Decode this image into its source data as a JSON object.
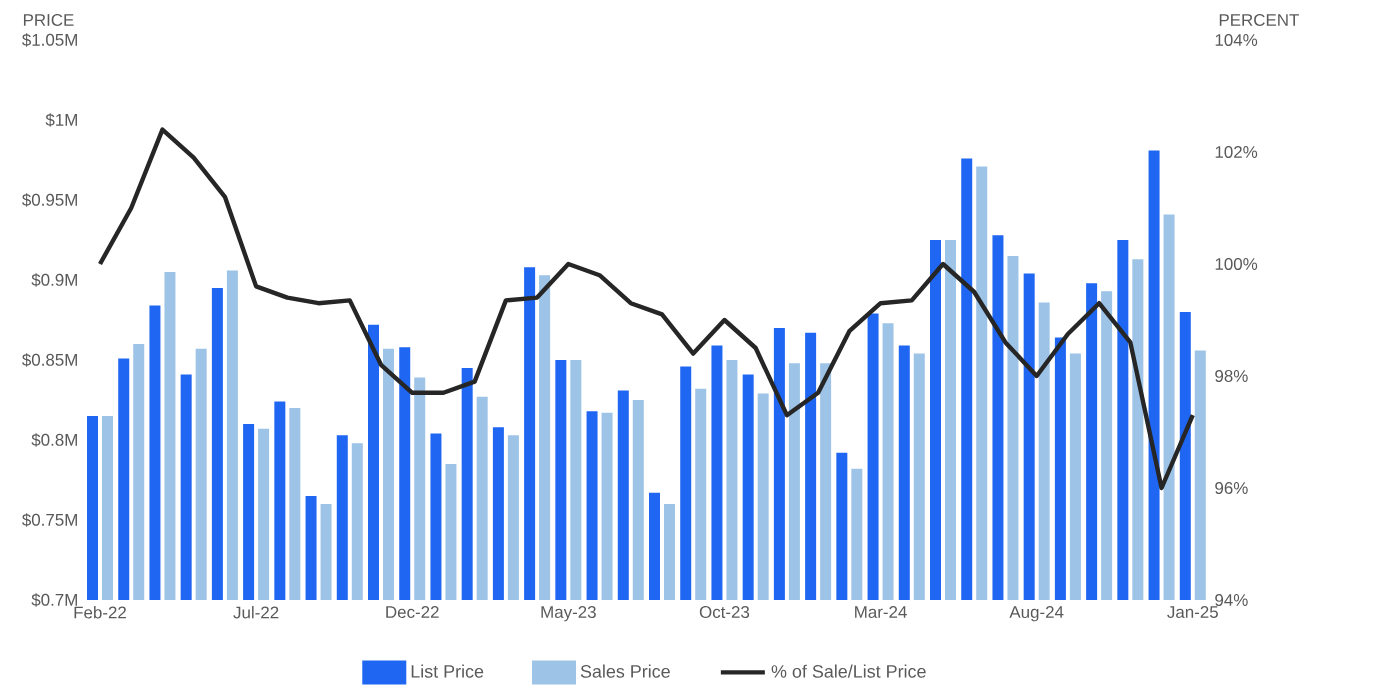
{
  "chart_data": {
    "type": "bar",
    "categories": [
      "Feb-22",
      null,
      null,
      null,
      null,
      "Jul-22",
      null,
      null,
      null,
      null,
      "Dec-22",
      null,
      null,
      null,
      null,
      "May-23",
      null,
      null,
      null,
      null,
      "Oct-23",
      null,
      null,
      null,
      null,
      "Mar-24",
      null,
      null,
      null,
      null,
      "Aug-24",
      null,
      null,
      null,
      null,
      "Jan-25"
    ],
    "series": [
      {
        "name": "List Price",
        "color": "#1f66f2",
        "values": [
          0.815,
          0.851,
          0.884,
          0.841,
          0.895,
          0.81,
          0.824,
          0.765,
          0.803,
          0.872,
          0.858,
          0.804,
          0.845,
          0.808,
          0.908,
          0.85,
          0.818,
          0.831,
          0.767,
          0.846,
          0.859,
          0.841,
          0.87,
          0.867,
          0.792,
          0.879,
          0.859,
          0.925,
          0.976,
          0.928,
          0.904,
          0.864,
          0.898,
          0.925,
          0.981,
          0.88
        ]
      },
      {
        "name": "Sales Price",
        "color": "#9dc3e6",
        "values": [
          0.815,
          0.86,
          0.905,
          0.857,
          0.906,
          0.807,
          0.82,
          0.76,
          0.798,
          0.857,
          0.839,
          0.785,
          0.827,
          0.803,
          0.903,
          0.85,
          0.817,
          0.825,
          0.76,
          0.832,
          0.85,
          0.829,
          0.848,
          0.848,
          0.782,
          0.873,
          0.854,
          0.925,
          0.971,
          0.915,
          0.886,
          0.854,
          0.893,
          0.913,
          0.941,
          0.856
        ]
      },
      {
        "name": "% of Sale/List Price",
        "color": "#262626",
        "type": "line",
        "axis": "y2",
        "values": [
          100.0,
          101.0,
          102.4,
          101.9,
          101.2,
          99.6,
          99.4,
          99.3,
          99.35,
          98.2,
          97.7,
          97.7,
          97.9,
          99.35,
          99.4,
          100.0,
          99.8,
          99.3,
          99.1,
          98.4,
          99.0,
          98.5,
          97.3,
          97.7,
          98.8,
          99.3,
          99.35,
          100.0,
          99.5,
          98.6,
          98.0,
          98.75,
          99.3,
          98.6,
          96.0,
          97.3
        ]
      }
    ],
    "ylabel": "PRICE",
    "y2label": "PERCENT",
    "ylim": [
      0.7,
      1.05
    ],
    "yticks": [
      {
        "value": 0.7,
        "label": "$0.7M"
      },
      {
        "value": 0.75,
        "label": "$0.75M"
      },
      {
        "value": 0.8,
        "label": "$0.8M"
      },
      {
        "value": 0.85,
        "label": "$0.85M"
      },
      {
        "value": 0.9,
        "label": "$0.9M"
      },
      {
        "value": 0.95,
        "label": "$0.95M"
      },
      {
        "value": 1.0,
        "label": "$1M"
      },
      {
        "value": 1.05,
        "label": "$1.05M"
      }
    ],
    "y2lim": [
      94,
      104
    ],
    "y2ticks": [
      {
        "value": 94,
        "label": "94%"
      },
      {
        "value": 96,
        "label": "96%"
      },
      {
        "value": 98,
        "label": "98%"
      },
      {
        "value": 100,
        "label": "100%"
      },
      {
        "value": 102,
        "label": "102%"
      },
      {
        "value": 104,
        "label": "104%"
      }
    ],
    "legend": "bottom"
  }
}
